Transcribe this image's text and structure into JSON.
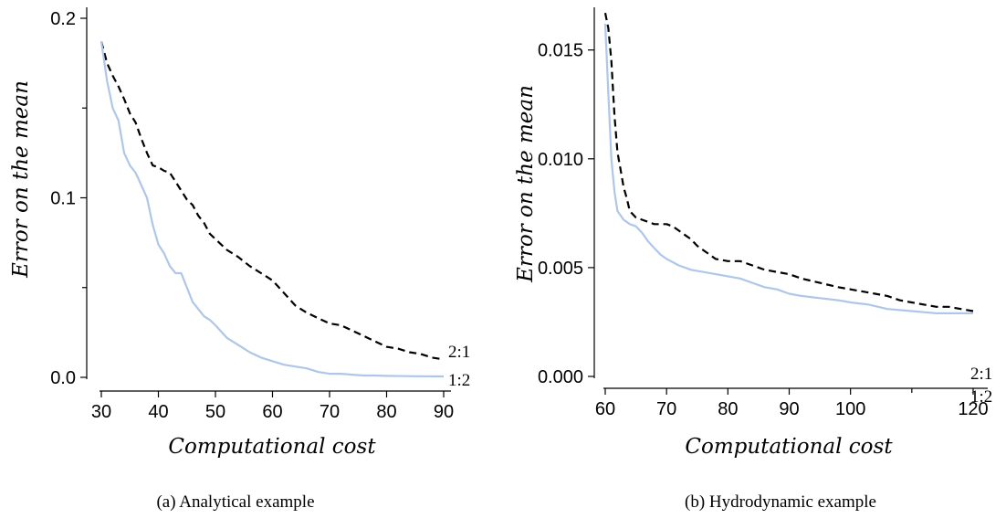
{
  "chart_data": [
    {
      "type": "line",
      "caption": "(a) Analytical example",
      "xlabel": "Computational cost",
      "ylabel": "Error on the mean",
      "xlim": [
        30,
        90
      ],
      "ylim": [
        0,
        0.2
      ],
      "xticks": [
        30,
        40,
        50,
        60,
        70,
        80,
        90
      ],
      "xminor": [],
      "yticks": [
        0.0,
        0.1,
        0.2
      ],
      "ytick_labels": [
        "0.0",
        "0.1",
        "0.2"
      ],
      "yminor": [
        0.05,
        0.15
      ],
      "series": [
        {
          "name": "2:1",
          "color": "#000000",
          "style": "dashed",
          "x": [
            30,
            31,
            32,
            33,
            34,
            35,
            36,
            37,
            38,
            39,
            40,
            41,
            42,
            43,
            44,
            45,
            46,
            47,
            48,
            49,
            50,
            52,
            54,
            56,
            58,
            60,
            62,
            64,
            66,
            68,
            70,
            72,
            74,
            76,
            78,
            80,
            82,
            84,
            86,
            88,
            90
          ],
          "y": [
            0.187,
            0.175,
            0.168,
            0.162,
            0.155,
            0.147,
            0.142,
            0.133,
            0.125,
            0.118,
            0.117,
            0.115,
            0.114,
            0.109,
            0.104,
            0.099,
            0.096,
            0.09,
            0.086,
            0.08,
            0.077,
            0.071,
            0.067,
            0.062,
            0.058,
            0.054,
            0.047,
            0.04,
            0.036,
            0.033,
            0.03,
            0.029,
            0.026,
            0.023,
            0.02,
            0.017,
            0.016,
            0.014,
            0.013,
            0.011,
            0.01
          ]
        },
        {
          "name": "1:2",
          "color": "#aec7e8",
          "style": "solid",
          "x": [
            30,
            31,
            32,
            33,
            34,
            35,
            36,
            37,
            38,
            39,
            40,
            41,
            42,
            43,
            44,
            45,
            46,
            47,
            48,
            49,
            50,
            52,
            54,
            56,
            58,
            60,
            62,
            64,
            66,
            68,
            70,
            72,
            74,
            76,
            78,
            80,
            85,
            90
          ],
          "y": [
            0.187,
            0.165,
            0.15,
            0.143,
            0.125,
            0.118,
            0.114,
            0.107,
            0.1,
            0.085,
            0.074,
            0.069,
            0.062,
            0.058,
            0.058,
            0.05,
            0.042,
            0.038,
            0.034,
            0.032,
            0.029,
            0.022,
            0.018,
            0.014,
            0.011,
            0.009,
            0.007,
            0.006,
            0.005,
            0.003,
            0.002,
            0.002,
            0.0015,
            0.001,
            0.001,
            0.0008,
            0.0006,
            0.0005
          ]
        }
      ]
    },
    {
      "type": "line",
      "caption": "(b) Hydrodynamic example",
      "xlabel": "Computational cost",
      "ylabel": "Error on the mean",
      "xlim": [
        60,
        120
      ],
      "ylim": [
        0,
        0.0165
      ],
      "xticks": [
        60,
        70,
        80,
        90,
        100,
        120
      ],
      "xminor": [
        110
      ],
      "yticks": [
        0.0,
        0.005,
        0.01,
        0.015
      ],
      "ytick_labels": [
        "0.000",
        "0.005",
        "0.010",
        "0.015"
      ],
      "yminor": [],
      "series": [
        {
          "name": "2:1",
          "color": "#000000",
          "style": "dashed",
          "x": [
            60,
            60.5,
            61,
            61.5,
            62,
            62.5,
            63,
            63.5,
            64,
            65,
            66,
            67,
            68,
            69,
            70,
            71,
            72,
            73,
            74,
            75,
            76,
            77,
            78,
            80,
            82,
            84,
            86,
            88,
            90,
            92,
            95,
            98,
            100,
            102,
            104,
            106,
            108,
            110,
            112,
            114,
            116,
            118,
            120
          ],
          "y": [
            0.0167,
            0.016,
            0.0145,
            0.012,
            0.0103,
            0.0095,
            0.0087,
            0.0082,
            0.0076,
            0.0073,
            0.0072,
            0.0071,
            0.007,
            0.007,
            0.007,
            0.0069,
            0.0067,
            0.0065,
            0.0063,
            0.006,
            0.0058,
            0.0056,
            0.0054,
            0.0053,
            0.0053,
            0.0051,
            0.0049,
            0.0048,
            0.0047,
            0.0045,
            0.0043,
            0.0041,
            0.004,
            0.0039,
            0.0038,
            0.0037,
            0.0035,
            0.0034,
            0.0033,
            0.0032,
            0.0032,
            0.0031,
            0.003
          ]
        },
        {
          "name": "1:2",
          "color": "#aec7e8",
          "style": "solid",
          "x": [
            60,
            60.5,
            61,
            61.5,
            62,
            63,
            64,
            65,
            66,
            67,
            68,
            69,
            70,
            72,
            74,
            76,
            78,
            80,
            82,
            84,
            86,
            88,
            90,
            92,
            95,
            98,
            100,
            103,
            106,
            110,
            114,
            118,
            120
          ],
          "y": [
            0.0162,
            0.013,
            0.01,
            0.0085,
            0.0076,
            0.0072,
            0.007,
            0.0069,
            0.0066,
            0.0062,
            0.0059,
            0.0056,
            0.0054,
            0.0051,
            0.0049,
            0.0048,
            0.0047,
            0.0046,
            0.0045,
            0.0043,
            0.0041,
            0.004,
            0.0038,
            0.0037,
            0.0036,
            0.0035,
            0.0034,
            0.0033,
            0.0031,
            0.003,
            0.0029,
            0.0029,
            0.0029
          ]
        }
      ]
    }
  ]
}
